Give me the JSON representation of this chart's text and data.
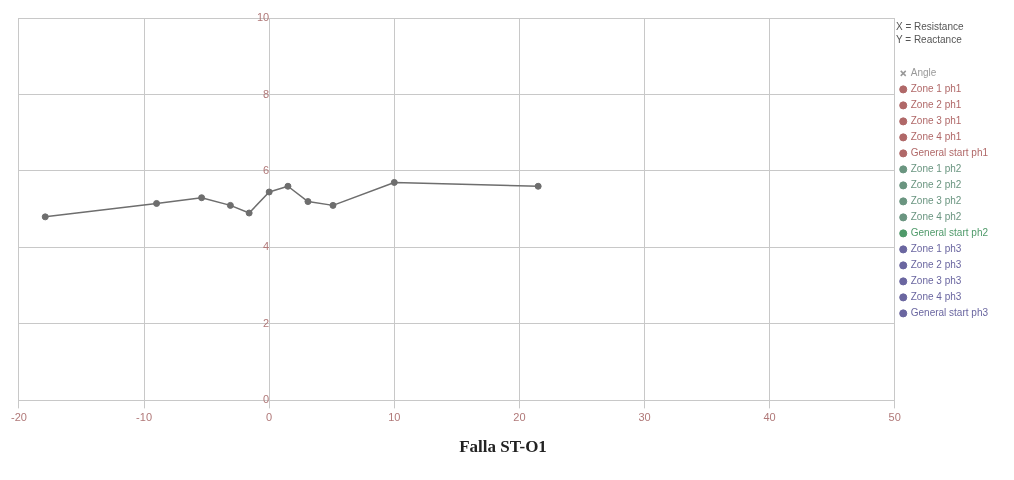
{
  "chart_data": {
    "type": "line",
    "title": "Falla ST-O1",
    "annotations": [
      "X = Resistance",
      "Y = Reactance"
    ],
    "xlim": [
      -20,
      50
    ],
    "xticks": [
      -20,
      -10,
      0,
      10,
      20,
      30,
      40,
      50
    ],
    "ylim": [
      0,
      10
    ],
    "yticks": [
      0,
      2,
      4,
      6,
      8,
      10
    ],
    "grid": true,
    "legend": "right",
    "marker": "circle",
    "line_style": "solid",
    "series": [
      {
        "color": "#6e6e6e",
        "x": [
          -17.9,
          -9,
          -5.4,
          -3.1,
          -1.6,
          0,
          1.5,
          3.1,
          5.1,
          10,
          21.5
        ],
        "values": [
          4.8,
          5.15,
          5.3,
          5.1,
          4.9,
          5.45,
          5.6,
          5.2,
          5.1,
          5.7,
          5.6
        ]
      },
      {
        "name": "Angle",
        "color": "#999999",
        "marker": "cross"
      },
      {
        "name": "Zone 1 ph1",
        "color": "#b06868"
      },
      {
        "name": "Zone 2 ph1",
        "color": "#b06868"
      },
      {
        "name": "Zone 3 ph1",
        "color": "#b06868"
      },
      {
        "name": "Zone 4 ph1",
        "color": "#b06868"
      },
      {
        "name": "General start ph1",
        "color": "#b06868"
      },
      {
        "name": "Zone 1 ph2",
        "color": "#6a9580"
      },
      {
        "name": "Zone 2 ph2",
        "color": "#6a9580"
      },
      {
        "name": "Zone 3 ph2",
        "color": "#6a9580"
      },
      {
        "name": "Zone 4 ph2",
        "color": "#6a9580"
      },
      {
        "name": "General start ph2",
        "color": "#4f9a6a"
      },
      {
        "name": "Zone 1 ph3",
        "color": "#6a66a0"
      },
      {
        "name": "Zone 2 ph3",
        "color": "#6a66a0"
      },
      {
        "name": "Zone 3 ph3",
        "color": "#6a66a0"
      },
      {
        "name": "Zone 4 ph3",
        "color": "#6a66a0"
      },
      {
        "name": "General start ph3",
        "color": "#6a66a0"
      }
    ]
  }
}
